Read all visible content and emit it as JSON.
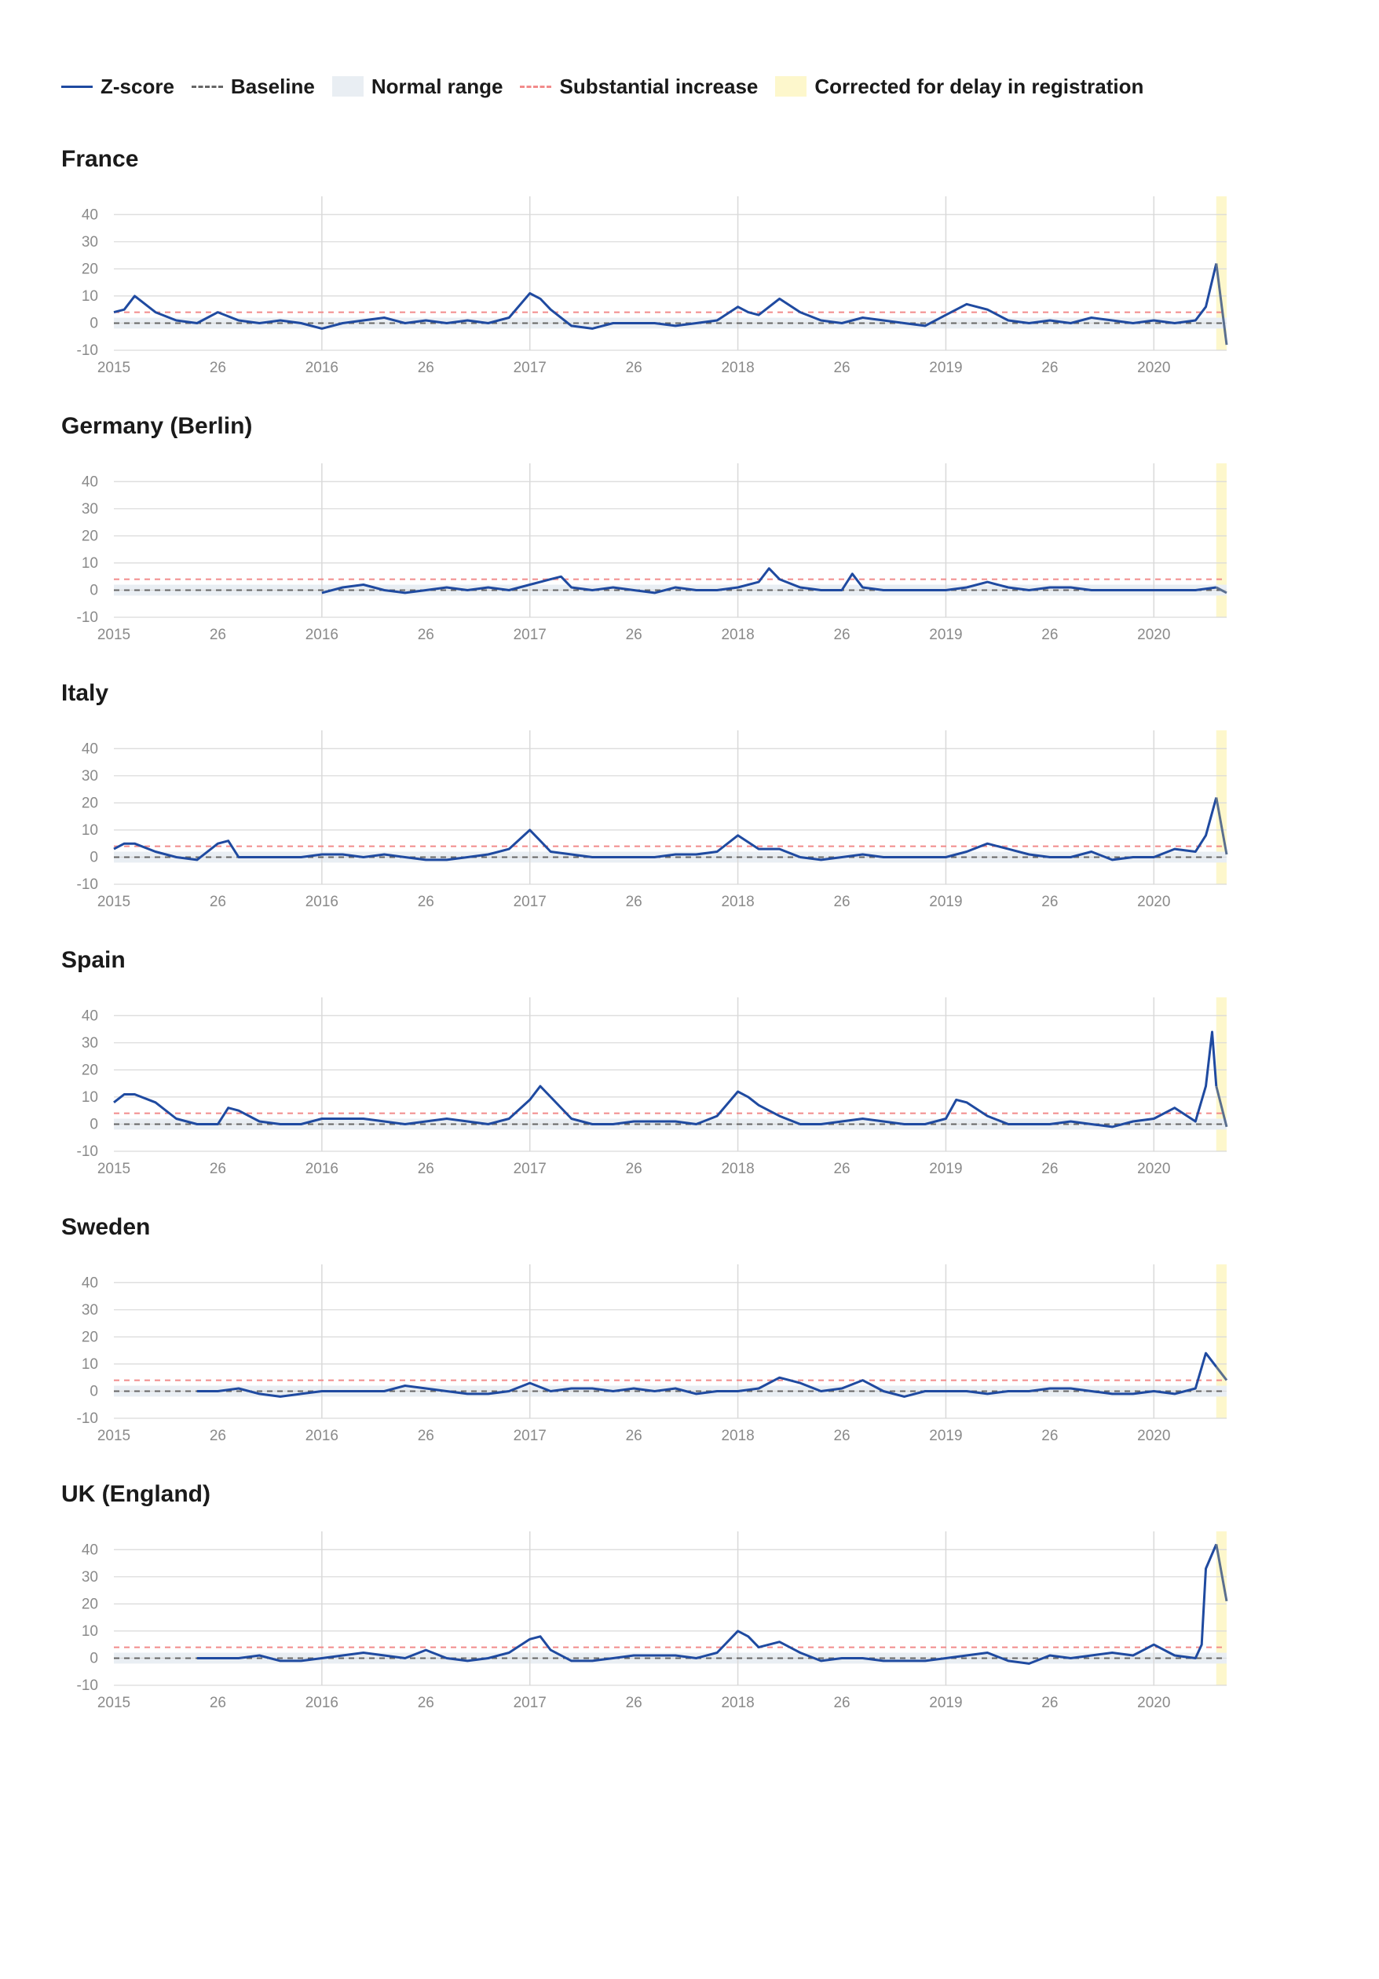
{
  "legend": {
    "zscore": "Z-score",
    "baseline": "Baseline",
    "normal_range": "Normal range",
    "substantial": "Substantial increase",
    "corrected": "Corrected for delay in registration"
  },
  "colors": {
    "zscore": "#1f4aa0",
    "zscore_corrected": "#5a6f8f",
    "baseline": "#666666",
    "normal_range": "#e9eef3",
    "substantial": "#f28b8b",
    "corrected": "#fdf7cc",
    "grid": "#d9d9d9"
  },
  "chart_data": [
    {
      "type": "line",
      "title": "France",
      "ylim": [
        -10,
        45
      ],
      "yticks": [
        -10,
        0,
        10,
        20,
        30,
        40
      ],
      "xticks": [
        "2015",
        "26",
        "2016",
        "26",
        "2017",
        "26",
        "2018",
        "26",
        "2019",
        "26",
        "2020"
      ],
      "baseline": 0,
      "substantial_increase": 4,
      "normal_range": [
        -2,
        2
      ],
      "series": [
        {
          "x": [
            2015.0,
            2015.05,
            2015.1,
            2015.2,
            2015.3,
            2015.4,
            2015.5,
            2015.6,
            2015.7,
            2015.8,
            2015.9,
            2016.0,
            2016.1,
            2016.2,
            2016.3,
            2016.4,
            2016.5,
            2016.6,
            2016.7,
            2016.8,
            2016.9,
            2017.0,
            2017.05,
            2017.1,
            2017.2,
            2017.3,
            2017.4,
            2017.5,
            2017.6,
            2017.7,
            2017.8,
            2017.9,
            2018.0,
            2018.05,
            2018.1,
            2018.2,
            2018.3,
            2018.4,
            2018.5,
            2018.6,
            2018.7,
            2018.8,
            2018.9,
            2019.0,
            2019.1,
            2019.2,
            2019.3,
            2019.4,
            2019.5,
            2019.6,
            2019.7,
            2019.8,
            2019.9,
            2020.0,
            2020.1,
            2020.2,
            2020.25,
            2020.3,
            2020.35
          ],
          "values": [
            4,
            5,
            10,
            4,
            1,
            0,
            4,
            1,
            0,
            1,
            0,
            -2,
            0,
            1,
            2,
            0,
            1,
            0,
            1,
            0,
            2,
            11,
            9,
            5,
            -1,
            -2,
            0,
            0,
            0,
            -1,
            0,
            1,
            6,
            4,
            3,
            9,
            4,
            1,
            0,
            2,
            1,
            0,
            -1,
            3,
            7,
            5,
            1,
            0,
            1,
            0,
            2,
            1,
            0,
            1,
            0,
            1,
            6,
            22,
            -8
          ]
        }
      ],
      "corrected_from": 2020.3
    },
    {
      "type": "line",
      "title": "Germany (Berlin)",
      "ylim": [
        -10,
        45
      ],
      "yticks": [
        -10,
        0,
        10,
        20,
        30,
        40
      ],
      "xticks": [
        "2015",
        "26",
        "2016",
        "26",
        "2017",
        "26",
        "2018",
        "26",
        "2019",
        "26",
        "2020"
      ],
      "baseline": 0,
      "substantial_increase": 4,
      "normal_range": [
        -2,
        2
      ],
      "series": [
        {
          "x": [
            2016.0,
            2016.1,
            2016.2,
            2016.3,
            2016.4,
            2016.5,
            2016.6,
            2016.7,
            2016.8,
            2016.9,
            2017.0,
            2017.1,
            2017.15,
            2017.2,
            2017.3,
            2017.4,
            2017.5,
            2017.6,
            2017.7,
            2017.8,
            2017.9,
            2018.0,
            2018.1,
            2018.15,
            2018.2,
            2018.3,
            2018.4,
            2018.5,
            2018.55,
            2018.6,
            2018.7,
            2018.8,
            2018.9,
            2019.0,
            2019.1,
            2019.2,
            2019.3,
            2019.4,
            2019.5,
            2019.6,
            2019.7,
            2019.8,
            2019.9,
            2020.0,
            2020.1,
            2020.2,
            2020.3,
            2020.35
          ],
          "values": [
            -1,
            1,
            2,
            0,
            -1,
            0,
            1,
            0,
            1,
            0,
            2,
            4,
            5,
            1,
            0,
            1,
            0,
            -1,
            1,
            0,
            0,
            1,
            3,
            8,
            4,
            1,
            0,
            0,
            6,
            1,
            0,
            0,
            0,
            0,
            1,
            3,
            1,
            0,
            1,
            1,
            0,
            0,
            0,
            0,
            0,
            0,
            1,
            -1
          ]
        }
      ],
      "corrected_from": 2020.3
    },
    {
      "type": "line",
      "title": "Italy",
      "ylim": [
        -10,
        45
      ],
      "yticks": [
        -10,
        0,
        10,
        20,
        30,
        40
      ],
      "xticks": [
        "2015",
        "26",
        "2016",
        "26",
        "2017",
        "26",
        "2018",
        "26",
        "2019",
        "26",
        "2020"
      ],
      "baseline": 0,
      "substantial_increase": 4,
      "normal_range": [
        -2,
        2
      ],
      "series": [
        {
          "x": [
            2015.0,
            2015.05,
            2015.1,
            2015.2,
            2015.3,
            2015.4,
            2015.5,
            2015.55,
            2015.6,
            2015.7,
            2015.8,
            2015.9,
            2016.0,
            2016.1,
            2016.2,
            2016.3,
            2016.4,
            2016.5,
            2016.6,
            2016.7,
            2016.8,
            2016.9,
            2017.0,
            2017.05,
            2017.1,
            2017.2,
            2017.3,
            2017.4,
            2017.5,
            2017.6,
            2017.7,
            2017.8,
            2017.9,
            2018.0,
            2018.1,
            2018.2,
            2018.3,
            2018.4,
            2018.5,
            2018.6,
            2018.7,
            2018.8,
            2018.9,
            2019.0,
            2019.1,
            2019.2,
            2019.3,
            2019.4,
            2019.5,
            2019.6,
            2019.7,
            2019.8,
            2019.9,
            2020.0,
            2020.1,
            2020.2,
            2020.25,
            2020.3,
            2020.35
          ],
          "values": [
            3,
            5,
            5,
            2,
            0,
            -1,
            5,
            6,
            0,
            0,
            0,
            0,
            1,
            1,
            0,
            1,
            0,
            -1,
            -1,
            0,
            1,
            3,
            10,
            6,
            2,
            1,
            0,
            0,
            0,
            0,
            1,
            1,
            2,
            8,
            3,
            3,
            0,
            -1,
            0,
            1,
            0,
            0,
            0,
            0,
            2,
            5,
            3,
            1,
            0,
            0,
            2,
            -1,
            0,
            0,
            3,
            2,
            8,
            22,
            1
          ]
        }
      ],
      "corrected_from": 2020.3
    },
    {
      "type": "line",
      "title": "Spain",
      "ylim": [
        -10,
        45
      ],
      "yticks": [
        -10,
        0,
        10,
        20,
        30,
        40
      ],
      "xticks": [
        "2015",
        "26",
        "2016",
        "26",
        "2017",
        "26",
        "2018",
        "26",
        "2019",
        "26",
        "2020"
      ],
      "baseline": 0,
      "substantial_increase": 4,
      "normal_range": [
        -2,
        2
      ],
      "series": [
        {
          "x": [
            2015.0,
            2015.05,
            2015.1,
            2015.2,
            2015.3,
            2015.4,
            2015.5,
            2015.55,
            2015.6,
            2015.7,
            2015.8,
            2015.9,
            2016.0,
            2016.1,
            2016.2,
            2016.3,
            2016.4,
            2016.5,
            2016.6,
            2016.7,
            2016.8,
            2016.9,
            2017.0,
            2017.05,
            2017.1,
            2017.2,
            2017.3,
            2017.4,
            2017.5,
            2017.6,
            2017.7,
            2017.8,
            2017.9,
            2018.0,
            2018.05,
            2018.1,
            2018.2,
            2018.3,
            2018.4,
            2018.5,
            2018.6,
            2018.7,
            2018.8,
            2018.9,
            2019.0,
            2019.05,
            2019.1,
            2019.2,
            2019.3,
            2019.4,
            2019.5,
            2019.6,
            2019.7,
            2019.8,
            2019.9,
            2020.0,
            2020.1,
            2020.2,
            2020.25,
            2020.28,
            2020.3,
            2020.35
          ],
          "values": [
            8,
            11,
            11,
            8,
            2,
            0,
            0,
            6,
            5,
            1,
            0,
            0,
            2,
            2,
            2,
            1,
            0,
            1,
            2,
            1,
            0,
            2,
            9,
            14,
            10,
            2,
            0,
            0,
            1,
            1,
            1,
            0,
            3,
            12,
            10,
            7,
            3,
            0,
            0,
            1,
            2,
            1,
            0,
            0,
            2,
            9,
            8,
            3,
            0,
            0,
            0,
            1,
            0,
            -1,
            1,
            2,
            6,
            1,
            14,
            34,
            14,
            -1
          ]
        }
      ],
      "corrected_from": 2020.3
    },
    {
      "type": "line",
      "title": "Sweden",
      "ylim": [
        -10,
        45
      ],
      "yticks": [
        -10,
        0,
        10,
        20,
        30,
        40
      ],
      "xticks": [
        "2015",
        "26",
        "2016",
        "26",
        "2017",
        "26",
        "2018",
        "26",
        "2019",
        "26",
        "2020"
      ],
      "baseline": 0,
      "substantial_increase": 4,
      "normal_range": [
        -2,
        2
      ],
      "series": [
        {
          "x": [
            2015.4,
            2015.5,
            2015.6,
            2015.7,
            2015.8,
            2015.9,
            2016.0,
            2016.1,
            2016.2,
            2016.3,
            2016.4,
            2016.5,
            2016.6,
            2016.7,
            2016.8,
            2016.9,
            2017.0,
            2017.1,
            2017.2,
            2017.3,
            2017.4,
            2017.5,
            2017.6,
            2017.7,
            2017.8,
            2017.9,
            2018.0,
            2018.1,
            2018.2,
            2018.3,
            2018.4,
            2018.5,
            2018.6,
            2018.7,
            2018.8,
            2018.9,
            2019.0,
            2019.1,
            2019.2,
            2019.3,
            2019.4,
            2019.5,
            2019.6,
            2019.7,
            2019.8,
            2019.9,
            2020.0,
            2020.1,
            2020.2,
            2020.25,
            2020.3,
            2020.35
          ],
          "values": [
            0,
            0,
            1,
            -1,
            -2,
            -1,
            0,
            0,
            0,
            0,
            2,
            1,
            0,
            -1,
            -1,
            0,
            3,
            0,
            1,
            1,
            0,
            1,
            0,
            1,
            -1,
            0,
            0,
            1,
            5,
            3,
            0,
            1,
            4,
            0,
            -2,
            0,
            0,
            0,
            -1,
            0,
            0,
            1,
            1,
            0,
            -1,
            -1,
            0,
            -1,
            1,
            14,
            9,
            4
          ]
        }
      ],
      "corrected_from": 2020.3
    },
    {
      "type": "line",
      "title": "UK (England)",
      "ylim": [
        -10,
        45
      ],
      "yticks": [
        -10,
        0,
        10,
        20,
        30,
        40
      ],
      "xticks": [
        "2015",
        "26",
        "2016",
        "26",
        "2017",
        "26",
        "2018",
        "26",
        "2019",
        "26",
        "2020"
      ],
      "baseline": 0,
      "substantial_increase": 4,
      "normal_range": [
        -2,
        2
      ],
      "series": [
        {
          "x": [
            2015.4,
            2015.5,
            2015.6,
            2015.7,
            2015.8,
            2015.9,
            2016.0,
            2016.1,
            2016.2,
            2016.3,
            2016.4,
            2016.5,
            2016.6,
            2016.7,
            2016.8,
            2016.9,
            2017.0,
            2017.05,
            2017.1,
            2017.2,
            2017.3,
            2017.4,
            2017.5,
            2017.6,
            2017.7,
            2017.8,
            2017.9,
            2018.0,
            2018.05,
            2018.1,
            2018.2,
            2018.3,
            2018.4,
            2018.5,
            2018.6,
            2018.7,
            2018.8,
            2018.9,
            2019.0,
            2019.1,
            2019.2,
            2019.3,
            2019.4,
            2019.5,
            2019.6,
            2019.7,
            2019.8,
            2019.9,
            2020.0,
            2020.1,
            2020.2,
            2020.23,
            2020.25,
            2020.3,
            2020.35
          ],
          "values": [
            0,
            0,
            0,
            1,
            -1,
            -1,
            0,
            1,
            2,
            1,
            0,
            3,
            0,
            -1,
            0,
            2,
            7,
            8,
            3,
            -1,
            -1,
            0,
            1,
            1,
            1,
            0,
            2,
            10,
            8,
            4,
            6,
            2,
            -1,
            0,
            0,
            -1,
            -1,
            -1,
            0,
            1,
            2,
            -1,
            -2,
            1,
            0,
            1,
            2,
            1,
            5,
            1,
            0,
            5,
            33,
            42,
            21
          ]
        }
      ],
      "corrected_from": 2020.3
    }
  ]
}
